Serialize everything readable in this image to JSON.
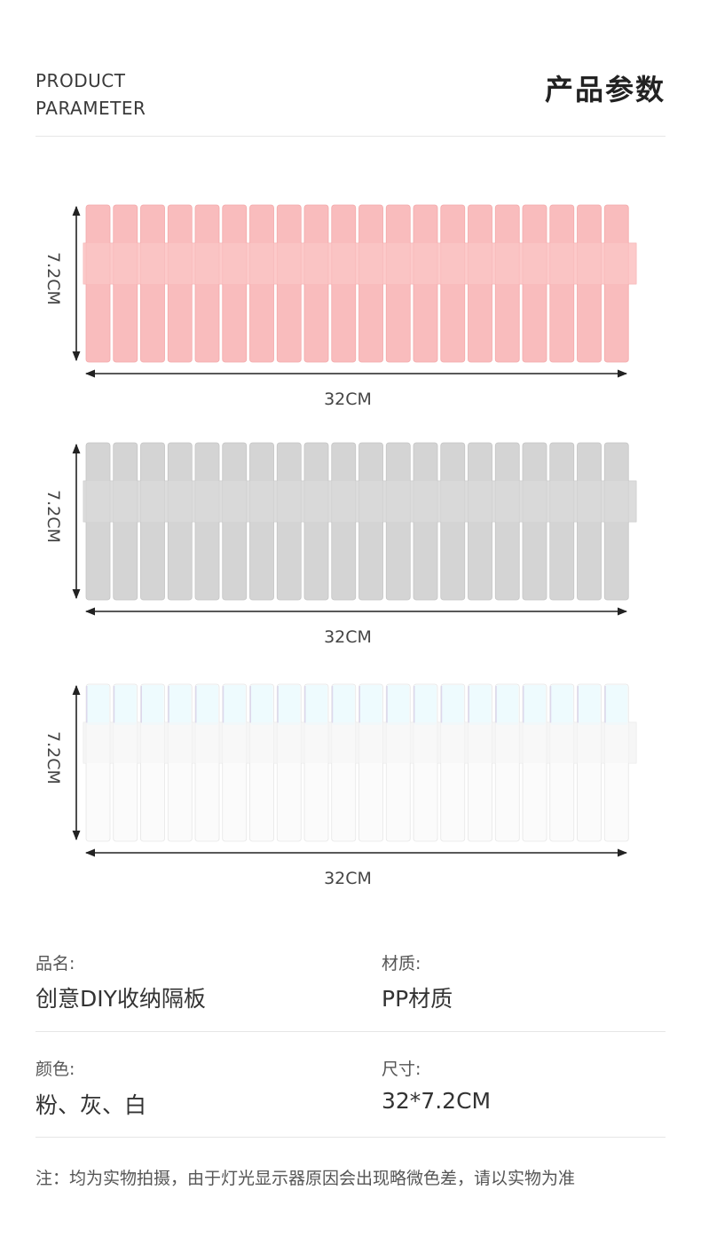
{
  "header": {
    "en_line1": "PRODUCT",
    "en_line2": "PARAMETER",
    "cn_title": "产品参数"
  },
  "panels": [
    {
      "color_name": "pink",
      "fill": "#f9bcbd",
      "band": "#fccaca",
      "stroke": "#f3a9aa",
      "height_label": "7.2CM",
      "width_label": "32CM"
    },
    {
      "color_name": "gray",
      "fill": "#d4d4d4",
      "band": "#dcdcdc",
      "stroke": "#c4c4c4",
      "height_label": "7.2CM",
      "width_label": "32CM"
    },
    {
      "color_name": "white",
      "fill": "#fbfbfb",
      "band": "#f6f6f6",
      "stroke": "#e6e6e6",
      "top_tint": "#eefbfe",
      "edge_tint": "#dcd8ec",
      "height_label": "7.2CM",
      "width_label": "32CM"
    }
  ],
  "specs": {
    "name_label": "品名:",
    "name_value": "创意DIY收纳隔板",
    "material_label": "材质:",
    "material_value": "PP材质",
    "color_label": "颜色:",
    "color_value": "粉、灰、白",
    "size_label": "尺寸:",
    "size_value": "32*7.2CM"
  },
  "note": "注：均为实物拍摄，由于灯光显示器原因会出现略微色差，请以实物为准"
}
